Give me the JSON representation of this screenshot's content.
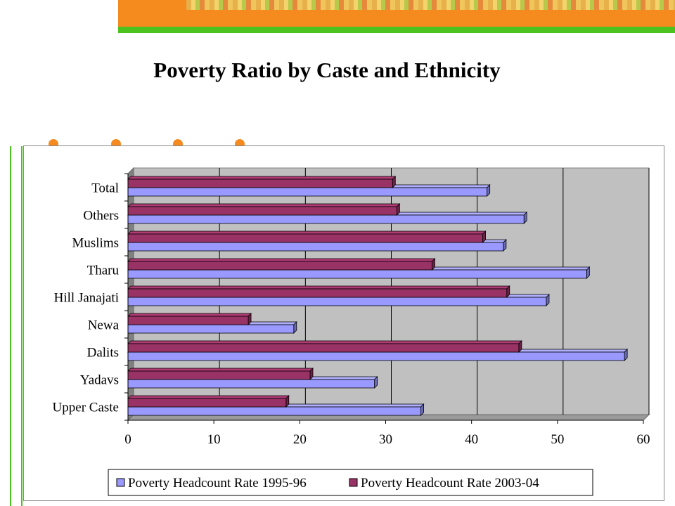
{
  "slide": {
    "title": "Poverty Ratio by Caste and Ethnicity",
    "colors": {
      "accent_orange": "#f58a1f",
      "accent_green": "#4cc21e"
    }
  },
  "chart_data": {
    "type": "bar",
    "orientation": "horizontal",
    "style": "3d",
    "categories": [
      "Total",
      "Others",
      "Muslims",
      "Tharu",
      "Hill Janajati",
      "Newa",
      "Dalits",
      "Yadavs",
      "Upper Caste"
    ],
    "series": [
      {
        "name": "Poverty Headcount Rate 1995-96",
        "color": "#9999ff",
        "values": [
          41.8,
          46.1,
          43.7,
          53.4,
          48.7,
          19.3,
          57.8,
          28.7,
          34.1
        ]
      },
      {
        "name": "Poverty Headcount Rate 2003-04",
        "color": "#993366",
        "values": [
          30.8,
          31.3,
          41.3,
          35.4,
          44.1,
          14.0,
          45.5,
          21.2,
          18.4
        ]
      }
    ],
    "xlim": [
      0,
      60
    ],
    "xticks": [
      "0",
      "10",
      "20",
      "30",
      "40",
      "50",
      "60"
    ],
    "grid": true,
    "legend": "bottom",
    "plot_background": "#c0c0c0"
  }
}
